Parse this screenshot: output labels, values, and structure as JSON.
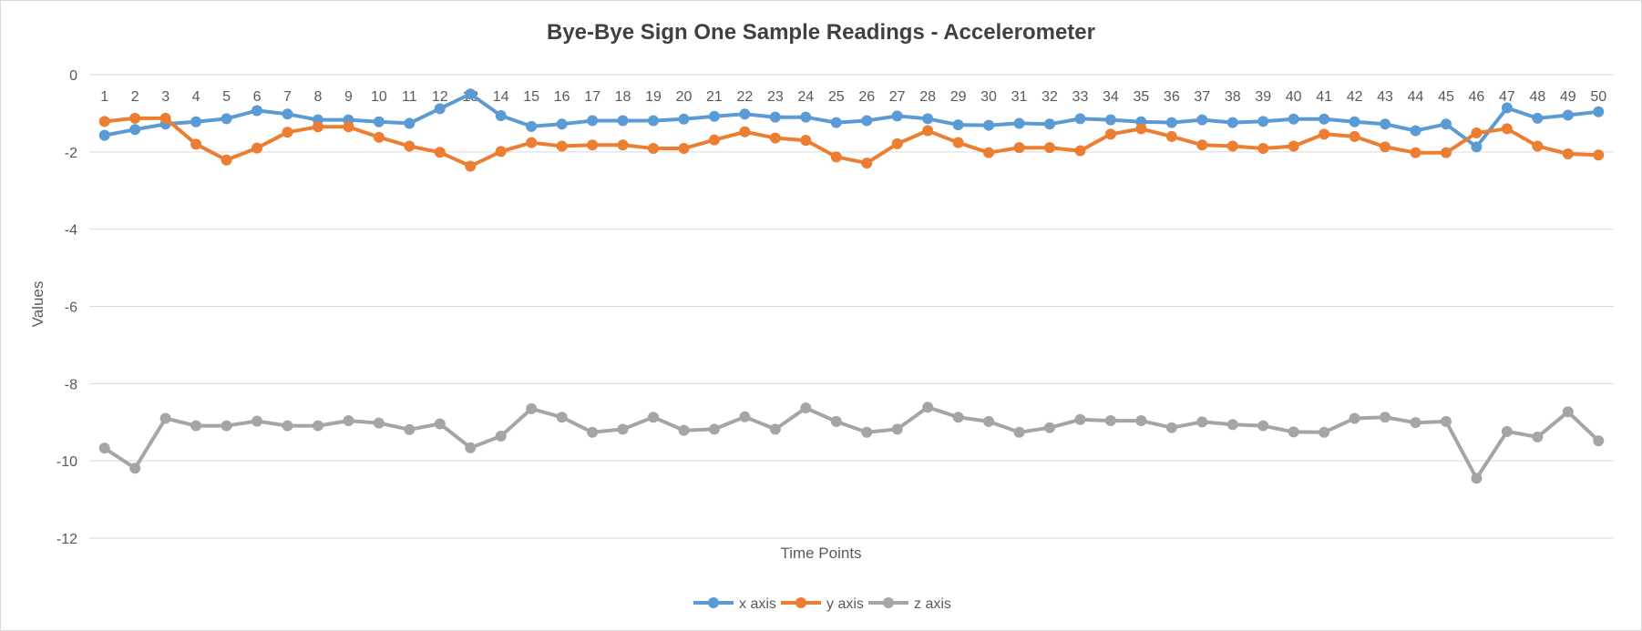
{
  "chart_data": {
    "type": "line",
    "title": "Bye-Bye Sign One Sample Readings - Accelerometer",
    "xlabel": "Time Points",
    "ylabel": "Values",
    "ylim": [
      -12,
      0
    ],
    "yticks": [
      0,
      -2,
      -4,
      -6,
      -8,
      -10,
      -12
    ],
    "x": [
      1,
      2,
      3,
      4,
      5,
      6,
      7,
      8,
      9,
      10,
      11,
      12,
      13,
      14,
      15,
      16,
      17,
      18,
      19,
      20,
      21,
      22,
      23,
      24,
      25,
      26,
      27,
      28,
      29,
      30,
      31,
      32,
      33,
      34,
      35,
      36,
      37,
      38,
      39,
      40,
      41,
      42,
      43,
      44,
      45,
      46,
      47,
      48,
      49,
      50
    ],
    "grid": true,
    "legend_position": "bottom",
    "series": [
      {
        "name": "x axis",
        "color": "#5b9bd5",
        "values": [
          -1.57,
          -1.42,
          -1.28,
          -1.22,
          -1.14,
          -0.93,
          -1.02,
          -1.17,
          -1.17,
          -1.22,
          -1.26,
          -0.88,
          -0.5,
          -1.06,
          -1.34,
          -1.28,
          -1.19,
          -1.19,
          -1.19,
          -1.15,
          -1.08,
          -1.02,
          -1.1,
          -1.1,
          -1.24,
          -1.19,
          -1.07,
          -1.14,
          -1.3,
          -1.31,
          -1.26,
          -1.28,
          -1.14,
          -1.17,
          -1.22,
          -1.24,
          -1.17,
          -1.24,
          -1.21,
          -1.15,
          -1.15,
          -1.22,
          -1.28,
          -1.45,
          -1.28,
          -1.87,
          -0.86,
          -1.13,
          -1.05,
          -0.96
        ]
      },
      {
        "name": "y axis",
        "color": "#ed7d31",
        "values": [
          -1.21,
          -1.13,
          -1.13,
          -1.8,
          -2.21,
          -1.9,
          -1.49,
          -1.35,
          -1.35,
          -1.62,
          -1.85,
          -2.01,
          -2.37,
          -1.99,
          -1.76,
          -1.85,
          -1.82,
          -1.82,
          -1.91,
          -1.91,
          -1.69,
          -1.48,
          -1.64,
          -1.7,
          -2.13,
          -2.29,
          -1.79,
          -1.45,
          -1.76,
          -2.02,
          -1.89,
          -1.89,
          -1.97,
          -1.54,
          -1.4,
          -1.6,
          -1.82,
          -1.85,
          -1.91,
          -1.85,
          -1.54,
          -1.6,
          -1.87,
          -2.02,
          -2.02,
          -1.51,
          -1.4,
          -1.85,
          -2.05,
          -2.08
        ]
      },
      {
        "name": "z axis",
        "color": "#a5a5a5",
        "values": [
          -9.67,
          -10.19,
          -8.9,
          -9.09,
          -9.09,
          -8.97,
          -9.09,
          -9.09,
          -8.96,
          -9.02,
          -9.19,
          -9.04,
          -9.66,
          -9.36,
          -8.65,
          -8.87,
          -9.26,
          -9.18,
          -8.87,
          -9.21,
          -9.18,
          -8.86,
          -9.18,
          -8.63,
          -8.98,
          -9.26,
          -9.18,
          -8.61,
          -8.87,
          -8.98,
          -9.26,
          -9.14,
          -8.93,
          -8.96,
          -8.96,
          -9.14,
          -8.99,
          -9.06,
          -9.09,
          -9.25,
          -9.26,
          -8.9,
          -8.87,
          -9.01,
          -8.98,
          -10.45,
          -9.24,
          -9.38,
          -8.73,
          -9.48
        ]
      }
    ]
  }
}
